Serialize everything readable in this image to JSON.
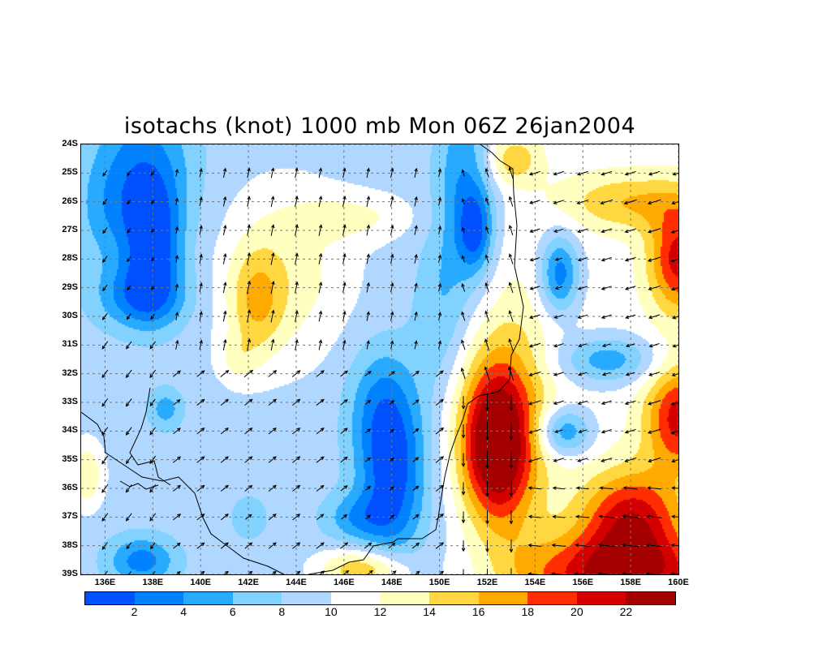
{
  "title": "isotachs (knot) 1000 mb Mon 06Z 26jan2004",
  "chart_data": {
    "type": "heatmap",
    "title": "isotachs (knot) 1000 mb Mon 06Z 26jan2004",
    "variable": "wind speed",
    "units": "knot",
    "lon_range": [
      135,
      160
    ],
    "lat_range": [
      -39,
      -24
    ],
    "lat_labels": [
      "24S",
      "25S",
      "26S",
      "27S",
      "28S",
      "29S",
      "30S",
      "31S",
      "32S",
      "33S",
      "34S",
      "35S",
      "36S",
      "37S",
      "38S",
      "39S"
    ],
    "lon_labels": [
      "136E",
      "138E",
      "140E",
      "142E",
      "144E",
      "146E",
      "148E",
      "150E",
      "152E",
      "154E",
      "156E",
      "158E",
      "160E"
    ],
    "colorbar": {
      "labels": [
        "2",
        "4",
        "6",
        "8",
        "10",
        "12",
        "14",
        "16",
        "18",
        "20",
        "22"
      ],
      "colors": [
        "#0050ff",
        "#0082ff",
        "#28aaff",
        "#82d2ff",
        "#afd7ff",
        "#ffffff",
        "#ffffc0",
        "#ffd740",
        "#ffaa00",
        "#ff2d00",
        "#d40000",
        "#a50000"
      ]
    }
  }
}
